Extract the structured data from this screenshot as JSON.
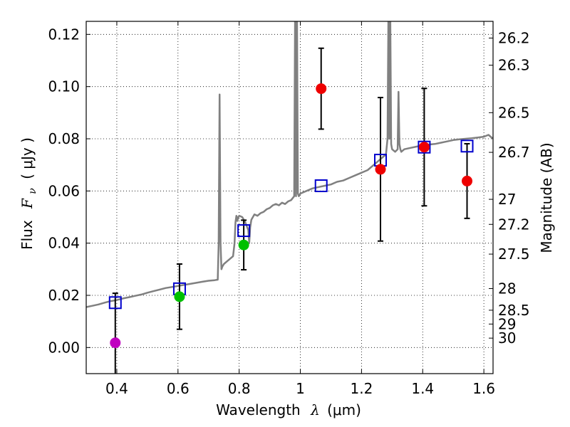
{
  "chart_data": {
    "type": "scatter",
    "xlabel_text": "Wavelength",
    "xlabel_symbol": "λ",
    "xlabel_unit": "(μm)",
    "ylabel_text": "Flux",
    "ylabel_symbol": "F",
    "ylabel_sub": "ν",
    "ylabel_unit": "( μJy )",
    "y2label": "Magnitude (AB)",
    "xlim": [
      0.3,
      1.63
    ],
    "ylim": [
      -0.01,
      0.125
    ],
    "grid": true,
    "x_ticks": [
      0.4,
      0.6,
      0.8,
      1.0,
      1.2,
      1.4,
      1.6
    ],
    "x_tick_labels": [
      "0.4",
      "0.6",
      "0.8",
      "1",
      "1.2",
      "1.4",
      "1.6"
    ],
    "y_ticks": [
      0.0,
      0.02,
      0.04,
      0.06,
      0.08,
      0.1,
      0.12
    ],
    "y_tick_labels": [
      "0.00",
      "0.02",
      "0.04",
      "0.06",
      "0.08",
      "0.10",
      "0.12"
    ],
    "mag_ticks": [
      {
        "label": "26.2",
        "flux": 0.1186
      },
      {
        "label": "26.3",
        "flux": 0.1082
      },
      {
        "label": "26.5",
        "flux": 0.09
      },
      {
        "label": "26.7",
        "flux": 0.0748
      },
      {
        "label": "27",
        "flux": 0.0568
      },
      {
        "label": "27.2",
        "flux": 0.0472
      },
      {
        "label": "27.5",
        "flux": 0.0358
      },
      {
        "label": "28",
        "flux": 0.0226
      },
      {
        "label": "28.5",
        "flux": 0.0143
      },
      {
        "label": "29",
        "flux": 0.009
      },
      {
        "label": "30",
        "flux": 0.0036
      }
    ],
    "series": [
      {
        "name": "model-sed-spectrum",
        "kind": "line",
        "color": "#808080",
        "x": [
          0.3,
          0.32,
          0.34,
          0.36,
          0.38,
          0.4,
          0.42,
          0.44,
          0.46,
          0.48,
          0.5,
          0.52,
          0.54,
          0.56,
          0.58,
          0.6,
          0.62,
          0.64,
          0.66,
          0.68,
          0.7,
          0.72,
          0.73,
          0.733,
          0.736,
          0.739,
          0.742,
          0.745,
          0.75,
          0.76,
          0.77,
          0.78,
          0.785,
          0.788,
          0.791,
          0.794,
          0.797,
          0.8,
          0.81,
          0.82,
          0.83,
          0.833,
          0.836,
          0.84,
          0.85,
          0.86,
          0.87,
          0.88,
          0.89,
          0.9,
          0.91,
          0.92,
          0.93,
          0.94,
          0.95,
          0.96,
          0.97,
          0.98,
          0.983,
          0.986,
          0.989,
          0.992,
          0.995,
          1.0,
          1.02,
          1.04,
          1.06,
          1.08,
          1.1,
          1.12,
          1.14,
          1.16,
          1.18,
          1.2,
          1.22,
          1.24,
          1.26,
          1.28,
          1.285,
          1.288,
          1.291,
          1.294,
          1.297,
          1.3,
          1.31,
          1.318,
          1.321,
          1.324,
          1.327,
          1.33,
          1.34,
          1.36,
          1.38,
          1.4,
          1.42,
          1.44,
          1.46,
          1.48,
          1.5,
          1.52,
          1.54,
          1.56,
          1.58,
          1.6,
          1.615,
          1.63
        ],
        "y": [
          0.0155,
          0.016,
          0.0165,
          0.0172,
          0.0178,
          0.0182,
          0.0188,
          0.0193,
          0.0198,
          0.0203,
          0.021,
          0.0216,
          0.0222,
          0.0228,
          0.0232,
          0.0236,
          0.024,
          0.0244,
          0.0248,
          0.0252,
          0.0256,
          0.0258,
          0.026,
          0.04,
          0.097,
          0.04,
          0.03,
          0.031,
          0.032,
          0.033,
          0.034,
          0.035,
          0.04,
          0.048,
          0.0505,
          0.0485,
          0.05,
          0.0505,
          0.05,
          0.048,
          0.045,
          0.04,
          0.046,
          0.049,
          0.051,
          0.0505,
          0.0515,
          0.052,
          0.053,
          0.0535,
          0.0545,
          0.055,
          0.0545,
          0.0555,
          0.055,
          0.056,
          0.0565,
          0.058,
          0.13,
          0.058,
          0.13,
          0.059,
          0.058,
          0.059,
          0.06,
          0.061,
          0.0615,
          0.062,
          0.0625,
          0.0635,
          0.064,
          0.065,
          0.066,
          0.067,
          0.068,
          0.07,
          0.072,
          0.074,
          0.08,
          0.13,
          0.08,
          0.13,
          0.078,
          0.076,
          0.075,
          0.076,
          0.098,
          0.078,
          0.076,
          0.075,
          0.076,
          0.0765,
          0.077,
          0.0775,
          0.0778,
          0.078,
          0.0785,
          0.079,
          0.0795,
          0.0798,
          0.08,
          0.0802,
          0.0805,
          0.0808,
          0.0815,
          0.08
        ]
      },
      {
        "name": "observed-photometry",
        "kind": "points-with-errors",
        "points": [
          {
            "x": 0.395,
            "y": 0.0018,
            "err": 0.019,
            "color": "#c000c0"
          },
          {
            "x": 0.605,
            "y": 0.0195,
            "err": 0.0125,
            "color": "#00c000"
          },
          {
            "x": 0.815,
            "y": 0.0393,
            "err": 0.0095,
            "color": "#00c000"
          },
          {
            "x": 1.068,
            "y": 0.0992,
            "err": 0.0155,
            "color": "#ee0000"
          },
          {
            "x": 1.262,
            "y": 0.0683,
            "err": 0.0275,
            "color": "#ee0000"
          },
          {
            "x": 1.405,
            "y": 0.0768,
            "err": 0.0225,
            "color": "#ee0000"
          },
          {
            "x": 1.545,
            "y": 0.0638,
            "err": 0.0143,
            "color": "#ee0000"
          }
        ]
      },
      {
        "name": "model-photometry",
        "kind": "open-squares",
        "color": "#0000cc",
        "x": [
          0.395,
          0.605,
          0.815,
          1.068,
          1.262,
          1.405,
          1.545
        ],
        "y": [
          0.0172,
          0.0225,
          0.0448,
          0.062,
          0.0718,
          0.0768,
          0.0772
        ]
      }
    ]
  }
}
